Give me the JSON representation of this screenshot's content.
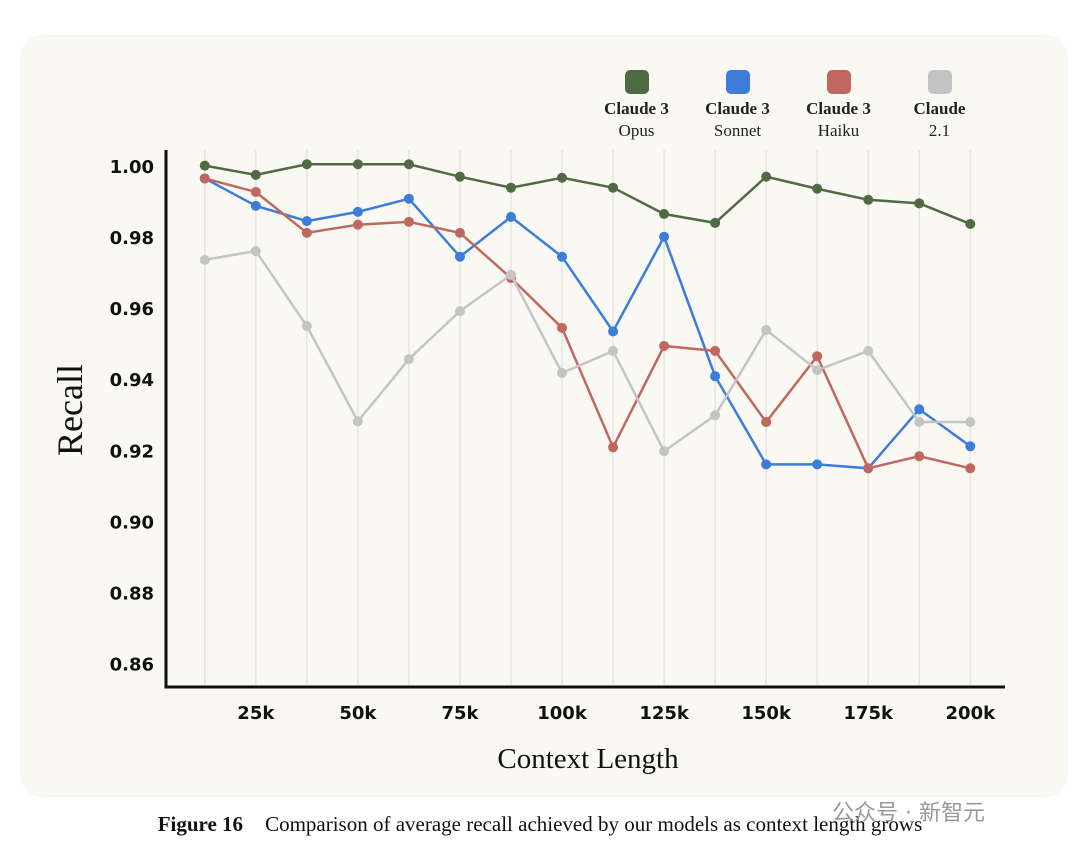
{
  "chart_data": {
    "type": "line",
    "xlabel": "Context Length",
    "ylabel": "Recall",
    "x": [
      12500,
      25000,
      37500,
      50000,
      62500,
      75000,
      87500,
      100000,
      112500,
      125000,
      137500,
      150000,
      162500,
      175000,
      187500,
      200000
    ],
    "series": [
      {
        "name": "Claude 3\nOpus",
        "color": "#4f6b43",
        "values": [
          1.0006,
          0.998,
          1.001,
          1.001,
          1.001,
          0.9975,
          0.9944,
          0.9972,
          0.9944,
          0.987,
          0.9845,
          0.9975,
          0.9941,
          0.991,
          0.99,
          0.9842
        ]
      },
      {
        "name": "Claude 3\nSonnet",
        "color": "#3b7dd8",
        "values": [
          0.997,
          0.9893,
          0.985,
          0.9876,
          0.9913,
          0.975,
          0.9862,
          0.975,
          0.954,
          0.9806,
          0.9414,
          0.9166,
          0.9166,
          0.9155,
          0.9321,
          0.9217
        ]
      },
      {
        "name": "Claude 3\nHaiku",
        "color": "#c0675e",
        "values": [
          0.997,
          0.9932,
          0.9817,
          0.984,
          0.9848,
          0.9817,
          0.969,
          0.955,
          0.9214,
          0.9499,
          0.9485,
          0.9285,
          0.947,
          0.9155,
          0.9189,
          0.9155
        ]
      },
      {
        "name": "Claude\n2.1",
        "color": "#c4c4c4",
        "values": [
          0.9741,
          0.9766,
          0.9555,
          0.9287,
          0.9462,
          0.9597,
          0.9699,
          0.9423,
          0.9485,
          0.9203,
          0.9304,
          0.9544,
          0.9431,
          0.9485,
          0.9285,
          0.9285
        ]
      }
    ],
    "xlim": [
      3000,
      208500
    ],
    "xticks": [
      {
        "value": 25000,
        "label": "25k"
      },
      {
        "value": 50000,
        "label": "50k"
      },
      {
        "value": 75000,
        "label": "75k"
      },
      {
        "value": 100000,
        "label": "100k"
      },
      {
        "value": 125000,
        "label": "125k"
      },
      {
        "value": 150000,
        "label": "150k"
      },
      {
        "value": 175000,
        "label": "175k"
      },
      {
        "value": 200000,
        "label": "200k"
      }
    ],
    "xminorticks": [
      12500,
      37500,
      62500,
      87500,
      112500,
      137500,
      162500,
      187500
    ],
    "ylim": [
      0.854,
      1.005
    ],
    "yticks": [
      {
        "value": 1.0,
        "label": "1.00"
      },
      {
        "value": 0.98,
        "label": "0.98"
      },
      {
        "value": 0.96,
        "label": "0.96"
      },
      {
        "value": 0.94,
        "label": "0.94"
      },
      {
        "value": 0.92,
        "label": "0.92"
      },
      {
        "value": 0.9,
        "label": "0.90"
      },
      {
        "value": 0.88,
        "label": "0.88"
      },
      {
        "value": 0.86,
        "label": "0.86"
      }
    ],
    "x_grid": true,
    "legend": "top-right"
  },
  "caption": {
    "label": "Figure 16",
    "text": "Comparison of average recall achieved by our models as context length grows"
  },
  "watermark": "公众号 · 新智元"
}
